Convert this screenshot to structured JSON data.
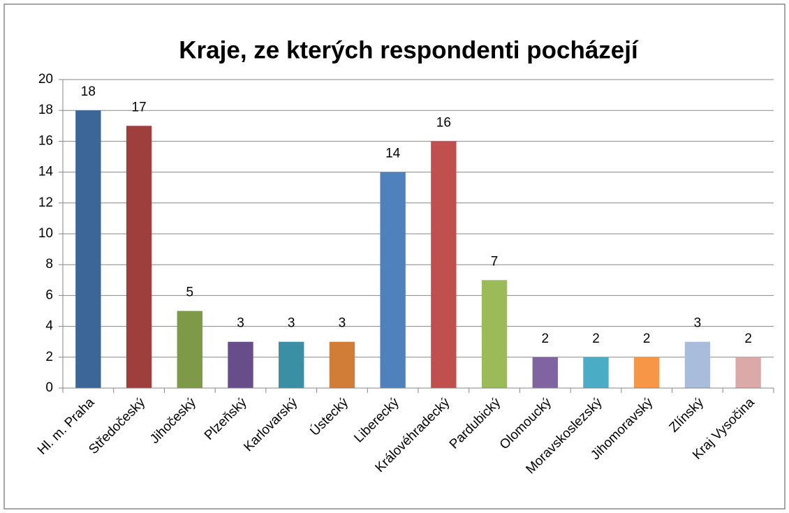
{
  "chart_data": {
    "type": "bar",
    "title": "Kraje, ze kterých respondenti pocházejí",
    "categories": [
      "Hl. m. Praha",
      "Středočeský",
      "Jihočeský",
      "Plzeňský",
      "Karlovarský",
      "Ústecký",
      "Liberecký",
      "Královéhradecký",
      "Pardubický",
      "Olomoucký",
      "Moravskoslezský",
      "Jihomoravský",
      "Zlínský",
      "Kraj Vysočina"
    ],
    "values": [
      18,
      17,
      5,
      3,
      3,
      3,
      14,
      16,
      7,
      2,
      2,
      2,
      3,
      2
    ],
    "colors": [
      "#3d6698",
      "#9e3f3d",
      "#7e9a48",
      "#674e8a",
      "#3a8fa4",
      "#d17c37",
      "#4f81bd",
      "#c0504d",
      "#9bbb59",
      "#8064a2",
      "#4bacc6",
      "#f79646",
      "#a9bcdb",
      "#dba9a8"
    ],
    "ylim": [
      0,
      20
    ],
    "yticks": [
      0,
      2,
      4,
      6,
      8,
      10,
      12,
      14,
      16,
      18,
      20
    ],
    "grid": true,
    "data_labels": true
  }
}
